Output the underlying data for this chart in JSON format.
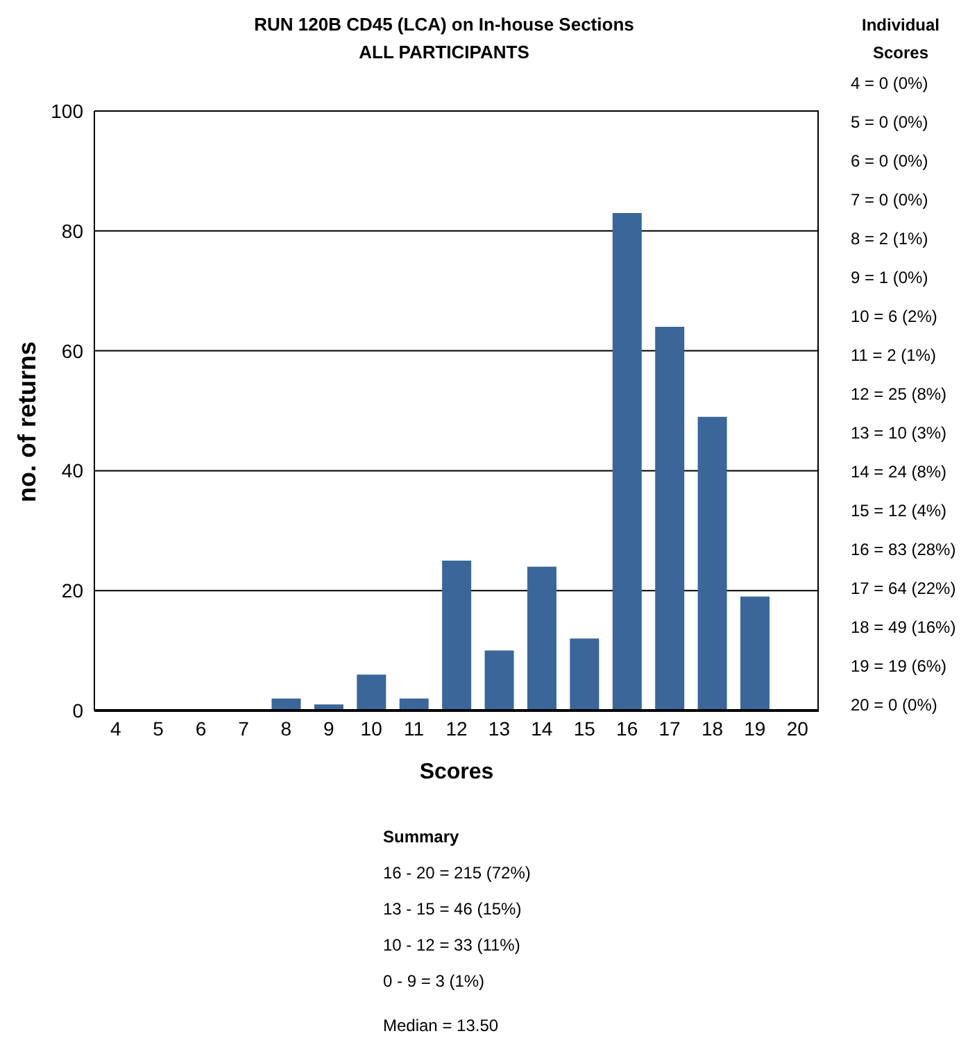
{
  "chart_data": {
    "type": "bar",
    "title": "RUN 120B CD45 (LCA) on In-house Sections",
    "subtitle": "ALL PARTICIPANTS",
    "xlabel": "Scores",
    "ylabel": "no. of returns",
    "categories": [
      "4",
      "5",
      "6",
      "7",
      "8",
      "9",
      "10",
      "11",
      "12",
      "13",
      "14",
      "15",
      "16",
      "17",
      "18",
      "19",
      "20"
    ],
    "values": [
      0,
      0,
      0,
      0,
      2,
      1,
      6,
      2,
      25,
      10,
      24,
      12,
      83,
      64,
      49,
      19,
      0
    ],
    "color": "#3a6699",
    "ylim": [
      0,
      100
    ],
    "yticks": [
      0,
      20,
      40,
      60,
      80,
      100
    ],
    "grid": "y",
    "annotations": [
      "Individual Scores",
      "4 = 0 (0%)",
      "5 = 0 (0%)",
      "6 = 0 (0%)",
      "7 = 0 (0%)",
      "8 = 2 (1%)",
      "9 = 1 (0%)",
      "10 = 6 (2%)",
      "11 = 2 (1%)",
      "12 = 25 (8%)",
      "13 = 10 (3%)",
      "14 = 24 (8%)",
      "15 = 12 (4%)",
      "16 = 83 (28%)",
      "17 = 64 (22%)",
      "18 = 49 (16%)",
      "19 = 19 (6%)",
      "20 = 0 (0%)",
      "Summary",
      "16 - 20 = 215 (72%)",
      "13 - 15 = 46 (15%)",
      "10 - 12 = 33 (11%)",
      "0 - 9 = 3 (1%)",
      "Median = 13.50"
    ]
  }
}
